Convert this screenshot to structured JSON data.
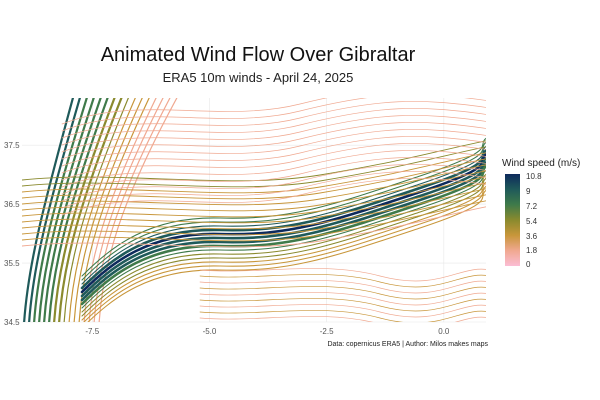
{
  "map": {
    "title": "Animated Wind Flow Over Gibraltar",
    "subtitle": "ERA5 10m winds - April 24, 2025",
    "caption": "Data: copernicus ERA5 | Author: Milos makes maps",
    "extent": {
      "lon": [
        -9.0,
        0.9
      ],
      "lat": [
        34.5,
        38.3
      ]
    },
    "x_ticks": [
      "-7.5",
      "-5.0",
      "-2.5",
      "0.0"
    ],
    "x_tick_values": [
      -7.5,
      -5.0,
      -2.5,
      0.0
    ],
    "y_ticks": [
      "37.5",
      "36.5",
      "35.5",
      "34.5"
    ],
    "y_tick_values": [
      37.5,
      36.5,
      35.5,
      34.5
    ],
    "legend": {
      "title": "Wind speed (m/s)",
      "labels": [
        "10.8",
        "9",
        "7.2",
        "5.4",
        "3.6",
        "1.8",
        "0"
      ],
      "colors": [
        "#0d2a5c",
        "#1f5a5a",
        "#3f7a4a",
        "#8a8a2e",
        "#c8963a",
        "#f0a890",
        "#fbbdd4"
      ]
    },
    "colors": {
      "grid": "#e8e8e8",
      "low_wind": "#f6b8cc",
      "high_wind": "#0f3556"
    }
  }
}
